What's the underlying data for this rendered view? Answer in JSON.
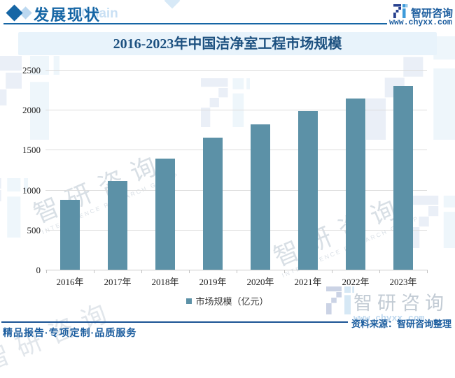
{
  "header": {
    "section_title": "发展现状",
    "watermark_word": "Chain",
    "brand": {
      "name": "智研咨询",
      "url": "www.chyxx.com"
    }
  },
  "banner": {
    "title": "2016-2023年中国洁净室工程市场规模"
  },
  "chart_data": {
    "type": "bar",
    "title": "2016-2023年中国洁净室工程市场规模",
    "categories": [
      "2016年",
      "2017年",
      "2018年",
      "2019年",
      "2020年",
      "2021年",
      "2022年",
      "2023年"
    ],
    "series": [
      {
        "name": "市场规模（亿元）",
        "values": [
          875,
          1110,
          1390,
          1650,
          1820,
          1980,
          2140,
          2300
        ]
      }
    ],
    "unit": "亿元",
    "ylim": [
      0,
      2500
    ],
    "yticks": [
      0,
      500,
      1000,
      1500,
      2000,
      2500
    ],
    "grid": true,
    "legend_position": "bottom",
    "bar_color": "#5C91A7"
  },
  "legend": {
    "label": "市场规模（亿元）",
    "marker_color": "#5C91A7"
  },
  "footer": {
    "source": "资料来源：智研咨询整理",
    "tagline": "精品报告·专项定制·品质服务"
  },
  "watermark": {
    "cn": "智研咨询",
    "en": "INTELLIGENCE RESEARCH GROUP",
    "url": "www.chyxx.com"
  },
  "colors": {
    "brand_blue": "#1666A5",
    "title_navy": "#1D5180",
    "footer_blue": "#1A5C9E",
    "banner_bg": "#E8F3FB",
    "bar": "#5C91A7",
    "gridline": "#DCDCDC",
    "axis": "#C9C9C9",
    "logo_dark": "#27418F",
    "logo_light": "#3E9BDA",
    "watermark_gray": "#8C9FB3"
  }
}
